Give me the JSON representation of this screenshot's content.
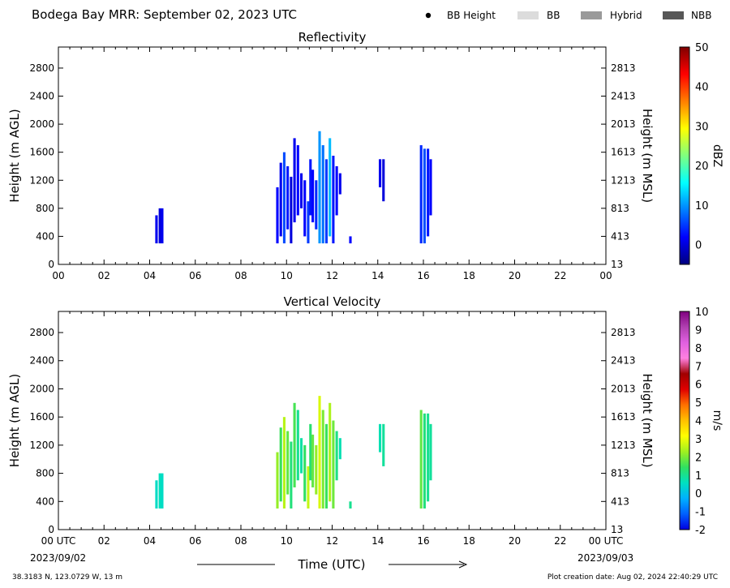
{
  "header": {
    "title": "Bodega Bay MRR:  September 02, 2023 UTC",
    "legend": [
      {
        "label": "BB Height",
        "kind": "dot",
        "color": "#000000"
      },
      {
        "label": "BB",
        "kind": "rect",
        "color": "#dcdcdc"
      },
      {
        "label": "Hybrid",
        "kind": "rect",
        "color": "#9a9a9a"
      },
      {
        "label": "NBB",
        "kind": "rect",
        "color": "#575757"
      }
    ]
  },
  "footer": {
    "location": "38.3183 N, 123.0729 W, 13 m",
    "creation": "Plot creation date: Aug 02, 2024 22:40:29 UTC",
    "xlabel": "Time (UTC)",
    "start_date": "2023/09/02",
    "end_date": "2023/09/03"
  },
  "chart_data": [
    {
      "type": "heatmap",
      "title": "Reflectivity",
      "ylabel": "Height (m AGL)",
      "ylabel_right": "Height (m MSL)",
      "colorbar_label": "dBZ",
      "xlim": [
        0,
        24
      ],
      "ylim": [
        0,
        3100
      ],
      "x_ticks": [
        "00",
        "02",
        "04",
        "06",
        "08",
        "10",
        "12",
        "14",
        "16",
        "18",
        "20",
        "22",
        "00"
      ],
      "y_ticks": [
        0,
        400,
        800,
        1200,
        1600,
        2000,
        2400,
        2800
      ],
      "y_ticks_right": [
        13,
        413,
        813,
        1213,
        1613,
        2013,
        2413,
        2813
      ],
      "colorbar": {
        "min": -5,
        "max": 50,
        "ticks": [
          0,
          10,
          20,
          30,
          40,
          50
        ],
        "colors": [
          "#00007f",
          "#0000ff",
          "#007fff",
          "#00ffff",
          "#7fff7f",
          "#ffff00",
          "#ff7f00",
          "#ff0000",
          "#7f0000"
        ]
      },
      "segments": [
        {
          "t": 4.3,
          "bottom": 300,
          "top": 700,
          "v": 1
        },
        {
          "t": 4.45,
          "bottom": 300,
          "top": 800,
          "v": 0
        },
        {
          "t": 4.55,
          "bottom": 300,
          "top": 800,
          "v": 1
        },
        {
          "t": 9.6,
          "bottom": 300,
          "top": 1100,
          "v": 2
        },
        {
          "t": 9.75,
          "bottom": 400,
          "top": 1450,
          "v": 1
        },
        {
          "t": 9.9,
          "bottom": 300,
          "top": 1600,
          "v": 6
        },
        {
          "t": 10.05,
          "bottom": 500,
          "top": 1400,
          "v": 3
        },
        {
          "t": 10.2,
          "bottom": 300,
          "top": 1250,
          "v": 0
        },
        {
          "t": 10.35,
          "bottom": 600,
          "top": 1800,
          "v": 1
        },
        {
          "t": 10.5,
          "bottom": 700,
          "top": 1700,
          "v": 2
        },
        {
          "t": 10.65,
          "bottom": 800,
          "top": 1300,
          "v": 1
        },
        {
          "t": 10.8,
          "bottom": 400,
          "top": 1200,
          "v": 2
        },
        {
          "t": 10.95,
          "bottom": 300,
          "top": 900,
          "v": 5
        },
        {
          "t": 11.05,
          "bottom": 700,
          "top": 1500,
          "v": 3
        },
        {
          "t": 11.15,
          "bottom": 600,
          "top": 1350,
          "v": 2
        },
        {
          "t": 11.3,
          "bottom": 500,
          "top": 1200,
          "v": 4
        },
        {
          "t": 11.45,
          "bottom": 300,
          "top": 1900,
          "v": 10
        },
        {
          "t": 11.6,
          "bottom": 300,
          "top": 1700,
          "v": 8
        },
        {
          "t": 11.75,
          "bottom": 300,
          "top": 1500,
          "v": 5
        },
        {
          "t": 11.9,
          "bottom": 400,
          "top": 1800,
          "v": 12
        },
        {
          "t": 12.05,
          "bottom": 300,
          "top": 1550,
          "v": 3
        },
        {
          "t": 12.2,
          "bottom": 700,
          "top": 1400,
          "v": 2
        },
        {
          "t": 12.35,
          "bottom": 1000,
          "top": 1300,
          "v": 1
        },
        {
          "t": 12.8,
          "bottom": 300,
          "top": 400,
          "v": 2
        },
        {
          "t": 14.1,
          "bottom": 1100,
          "top": 1500,
          "v": 1
        },
        {
          "t": 14.25,
          "bottom": 900,
          "top": 1500,
          "v": 0
        },
        {
          "t": 15.9,
          "bottom": 300,
          "top": 1700,
          "v": 4
        },
        {
          "t": 16.05,
          "bottom": 300,
          "top": 1650,
          "v": 6
        },
        {
          "t": 16.2,
          "bottom": 400,
          "top": 1650,
          "v": 3
        },
        {
          "t": 16.32,
          "bottom": 700,
          "top": 1500,
          "v": 2
        }
      ]
    },
    {
      "type": "heatmap",
      "title": "Vertical Velocity",
      "ylabel": "Height (m AGL)",
      "ylabel_right": "Height (m MSL)",
      "colorbar_label": "m/s",
      "xlim": [
        0,
        24
      ],
      "ylim": [
        0,
        3100
      ],
      "x_ticks": [
        "00 UTC",
        "02",
        "04",
        "06",
        "08",
        "10",
        "12",
        "14",
        "16",
        "18",
        "20",
        "22",
        "00 UTC"
      ],
      "y_ticks": [
        0,
        400,
        800,
        1200,
        1600,
        2000,
        2400,
        2800
      ],
      "y_ticks_right": [
        13,
        413,
        813,
        1213,
        1613,
        2013,
        2413,
        2813
      ],
      "colorbar": {
        "min": -2,
        "max": 10,
        "ticks": [
          -2,
          -1,
          0,
          1,
          2,
          3,
          4,
          5,
          6,
          7,
          8,
          9,
          10
        ],
        "colors": [
          "#0000e0",
          "#0060ff",
          "#00b0ff",
          "#00e0c0",
          "#30e060",
          "#a0f020",
          "#ffff00",
          "#ffc000",
          "#ff7000",
          "#e00000",
          "#a00000",
          "#ff80e0",
          "#e060e0",
          "#b040b0",
          "#800080"
        ]
      },
      "segments": [
        {
          "t": 4.3,
          "bottom": 300,
          "top": 700,
          "v": 0.5
        },
        {
          "t": 4.45,
          "bottom": 300,
          "top": 800,
          "v": 0.6
        },
        {
          "t": 4.55,
          "bottom": 300,
          "top": 800,
          "v": 0.5
        },
        {
          "t": 9.6,
          "bottom": 300,
          "top": 1100,
          "v": 2.2
        },
        {
          "t": 9.75,
          "bottom": 400,
          "top": 1450,
          "v": 1.5
        },
        {
          "t": 9.9,
          "bottom": 300,
          "top": 1600,
          "v": 2.5
        },
        {
          "t": 10.05,
          "bottom": 500,
          "top": 1400,
          "v": 1.8
        },
        {
          "t": 10.2,
          "bottom": 300,
          "top": 1250,
          "v": 1.2
        },
        {
          "t": 10.35,
          "bottom": 600,
          "top": 1800,
          "v": 1.6
        },
        {
          "t": 10.5,
          "bottom": 700,
          "top": 1700,
          "v": 1.0
        },
        {
          "t": 10.65,
          "bottom": 800,
          "top": 1300,
          "v": 0.8
        },
        {
          "t": 10.8,
          "bottom": 400,
          "top": 1200,
          "v": 1.4
        },
        {
          "t": 10.95,
          "bottom": 300,
          "top": 900,
          "v": 2.6
        },
        {
          "t": 11.05,
          "bottom": 700,
          "top": 1500,
          "v": 1.3
        },
        {
          "t": 11.15,
          "bottom": 600,
          "top": 1350,
          "v": 1.8
        },
        {
          "t": 11.3,
          "bottom": 500,
          "top": 1200,
          "v": 2.2
        },
        {
          "t": 11.45,
          "bottom": 300,
          "top": 1900,
          "v": 2.8
        },
        {
          "t": 11.6,
          "bottom": 300,
          "top": 1700,
          "v": 2.0
        },
        {
          "t": 11.75,
          "bottom": 300,
          "top": 1500,
          "v": 1.5
        },
        {
          "t": 11.9,
          "bottom": 400,
          "top": 1800,
          "v": 2.4
        },
        {
          "t": 12.05,
          "bottom": 300,
          "top": 1550,
          "v": 1.9
        },
        {
          "t": 12.2,
          "bottom": 700,
          "top": 1400,
          "v": 1.1
        },
        {
          "t": 12.35,
          "bottom": 1000,
          "top": 1300,
          "v": 0.7
        },
        {
          "t": 12.8,
          "bottom": 300,
          "top": 400,
          "v": 1.0
        },
        {
          "t": 14.1,
          "bottom": 1100,
          "top": 1500,
          "v": 0.7
        },
        {
          "t": 14.25,
          "bottom": 900,
          "top": 1500,
          "v": 0.9
        },
        {
          "t": 15.9,
          "bottom": 300,
          "top": 1700,
          "v": 1.8
        },
        {
          "t": 16.05,
          "bottom": 300,
          "top": 1650,
          "v": 1.2
        },
        {
          "t": 16.2,
          "bottom": 400,
          "top": 1650,
          "v": 1.0
        },
        {
          "t": 16.32,
          "bottom": 700,
          "top": 1500,
          "v": 0.9
        }
      ]
    }
  ]
}
